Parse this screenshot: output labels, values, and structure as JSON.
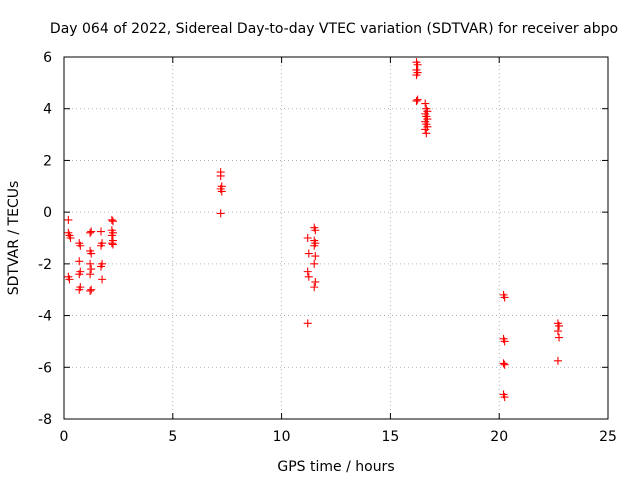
{
  "chart_data": {
    "type": "scatter",
    "title": "Day 064 of 2022, Sidereal Day-to-day VTEC variation (SDTVAR) for receiver abpo",
    "xlabel": "GPS time / hours",
    "ylabel": "SDTVAR / TECUs",
    "xlim": [
      0,
      25
    ],
    "ylim": [
      -8,
      6
    ],
    "xticks": [
      0,
      5,
      10,
      15,
      20,
      25
    ],
    "yticks": [
      -8,
      -6,
      -4,
      -2,
      0,
      2,
      4,
      6
    ],
    "xtick_labels": [
      "0",
      "5",
      "10",
      "15",
      "20",
      "25"
    ],
    "ytick_labels": [
      "-8",
      "-6",
      "-4",
      "-2",
      "0",
      "2",
      "4",
      "6"
    ],
    "grid": true,
    "marker": "+",
    "marker_color": "#ff0000",
    "series": [
      {
        "name": "SDTVAR",
        "points": [
          [
            0.2,
            -0.3
          ],
          [
            0.2,
            -0.8
          ],
          [
            0.25,
            -0.9
          ],
          [
            0.3,
            -1.0
          ],
          [
            0.2,
            -2.5
          ],
          [
            0.25,
            -2.6
          ],
          [
            0.7,
            -1.2
          ],
          [
            0.75,
            -1.3
          ],
          [
            0.7,
            -1.9
          ],
          [
            0.75,
            -2.3
          ],
          [
            0.7,
            -2.4
          ],
          [
            0.75,
            -2.9
          ],
          [
            0.7,
            -3.0
          ],
          [
            1.2,
            -0.8
          ],
          [
            1.25,
            -0.75
          ],
          [
            1.2,
            -1.5
          ],
          [
            1.25,
            -1.6
          ],
          [
            1.2,
            -2.0
          ],
          [
            1.25,
            -2.2
          ],
          [
            1.2,
            -2.4
          ],
          [
            1.25,
            -3.0
          ],
          [
            1.2,
            -3.05
          ],
          [
            1.7,
            -0.75
          ],
          [
            1.75,
            -1.2
          ],
          [
            1.7,
            -1.3
          ],
          [
            1.75,
            -2.0
          ],
          [
            1.7,
            -2.1
          ],
          [
            1.75,
            -2.6
          ],
          [
            2.2,
            -0.3
          ],
          [
            2.25,
            -0.35
          ],
          [
            2.2,
            -0.7
          ],
          [
            2.25,
            -0.8
          ],
          [
            2.2,
            -0.9
          ],
          [
            2.25,
            -1.1
          ],
          [
            2.2,
            -1.2
          ],
          [
            2.25,
            -1.25
          ],
          [
            7.2,
            1.55
          ],
          [
            7.2,
            1.4
          ],
          [
            7.25,
            1.0
          ],
          [
            7.2,
            0.9
          ],
          [
            7.25,
            0.8
          ],
          [
            7.2,
            -0.05
          ],
          [
            11.2,
            -1.0
          ],
          [
            11.25,
            -1.6
          ],
          [
            11.2,
            -2.3
          ],
          [
            11.25,
            -2.5
          ],
          [
            11.2,
            -4.3
          ],
          [
            11.5,
            -0.6
          ],
          [
            11.55,
            -0.7
          ],
          [
            11.5,
            -1.1
          ],
          [
            11.55,
            -1.2
          ],
          [
            11.5,
            -1.3
          ],
          [
            11.55,
            -1.7
          ],
          [
            11.5,
            -2.0
          ],
          [
            11.55,
            -2.7
          ],
          [
            11.5,
            -2.9
          ],
          [
            16.2,
            5.8
          ],
          [
            16.25,
            5.7
          ],
          [
            16.2,
            5.5
          ],
          [
            16.25,
            5.4
          ],
          [
            16.2,
            5.3
          ],
          [
            16.25,
            4.35
          ],
          [
            16.2,
            4.3
          ],
          [
            16.6,
            4.2
          ],
          [
            16.65,
            4.0
          ],
          [
            16.7,
            3.9
          ],
          [
            16.6,
            3.8
          ],
          [
            16.65,
            3.7
          ],
          [
            16.7,
            3.6
          ],
          [
            16.6,
            3.5
          ],
          [
            16.65,
            3.4
          ],
          [
            16.7,
            3.3
          ],
          [
            16.6,
            3.2
          ],
          [
            16.65,
            3.05
          ],
          [
            20.2,
            -3.2
          ],
          [
            20.25,
            -3.3
          ],
          [
            20.2,
            -4.9
          ],
          [
            20.25,
            -5.0
          ],
          [
            20.2,
            -5.85
          ],
          [
            20.25,
            -5.9
          ],
          [
            20.2,
            -7.05
          ],
          [
            20.25,
            -7.15
          ],
          [
            22.7,
            -4.3
          ],
          [
            22.75,
            -4.4
          ],
          [
            22.7,
            -4.6
          ],
          [
            22.75,
            -4.85
          ],
          [
            22.7,
            -5.75
          ]
        ]
      }
    ]
  }
}
